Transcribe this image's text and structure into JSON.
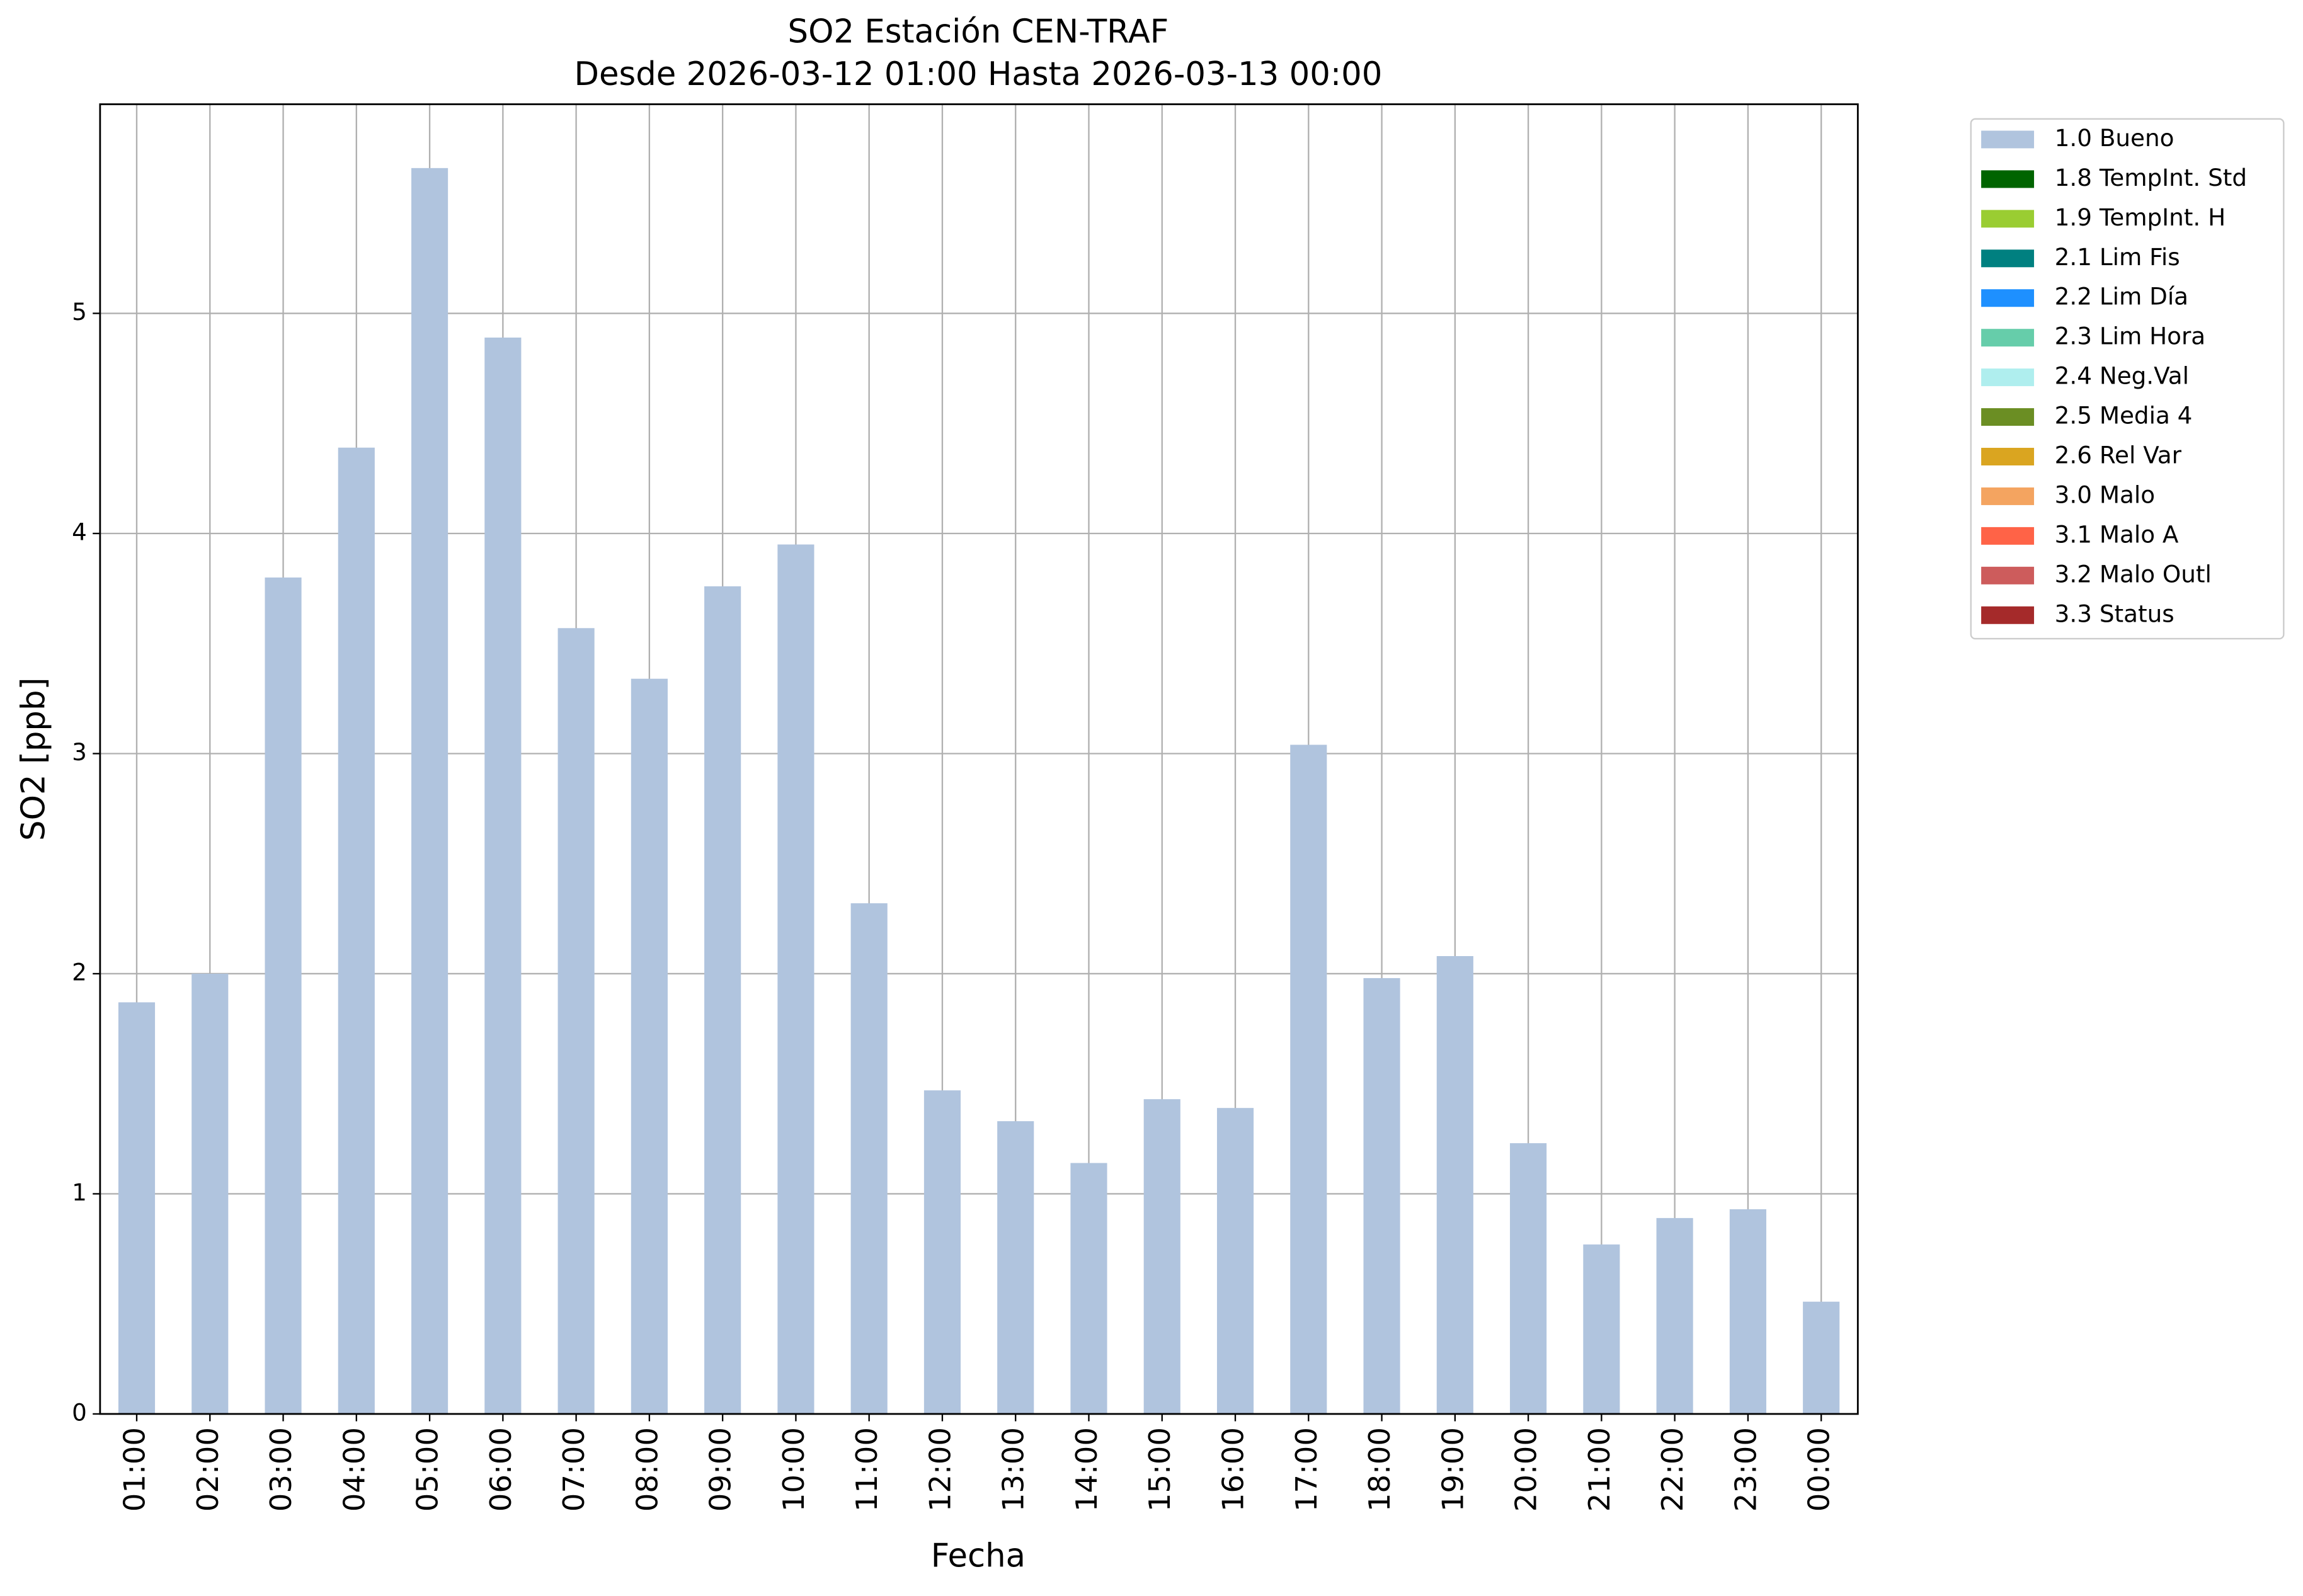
{
  "chart_data": {
    "type": "bar",
    "title": "SO2 Estación CEN-TRAF",
    "subtitle": "Desde 2026-03-12 01:00 Hasta 2026-03-13 00:00",
    "x_label": "Fecha",
    "y_label": "SO2 [ppb]",
    "categories": [
      "01:00",
      "02:00",
      "03:00",
      "04:00",
      "05:00",
      "06:00",
      "07:00",
      "08:00",
      "09:00",
      "10:00",
      "11:00",
      "12:00",
      "13:00",
      "14:00",
      "15:00",
      "16:00",
      "17:00",
      "18:00",
      "19:00",
      "20:00",
      "21:00",
      "22:00",
      "23:00",
      "00:00"
    ],
    "series": [
      {
        "name": "1.0 Bueno",
        "color": "#b0c4de",
        "values": [
          1.87,
          2.0,
          3.8,
          4.39,
          5.66,
          4.89,
          3.57,
          3.34,
          3.76,
          3.95,
          2.32,
          1.47,
          1.33,
          1.14,
          1.43,
          1.39,
          3.04,
          1.98,
          2.08,
          1.23,
          0.77,
          0.89,
          0.93,
          0.51
        ]
      }
    ],
    "legend_extra": [
      {
        "name": "1.8 TempInt. Std",
        "color": "#006400"
      },
      {
        "name": "1.9 TempInt. H",
        "color": "#9acd32"
      },
      {
        "name": "2.1 Lim Fis",
        "color": "#008080"
      },
      {
        "name": "2.2 Lim Día",
        "color": "#1e90ff"
      },
      {
        "name": "2.3 Lim Hora",
        "color": "#66cdaa"
      },
      {
        "name": "2.4 Neg.Val",
        "color": "#afeeee"
      },
      {
        "name": "2.5 Media 4",
        "color": "#6b8e23"
      },
      {
        "name": "2.6 Rel Var",
        "color": "#daa520"
      },
      {
        "name": "3.0 Malo",
        "color": "#f4a460"
      },
      {
        "name": "3.1 Malo A",
        "color": "#ff6347"
      },
      {
        "name": "3.2 Malo Outl",
        "color": "#cd5c5c"
      },
      {
        "name": "3.3 Status",
        "color": "#a52a2a"
      }
    ],
    "ylim": [
      0,
      5.95
    ],
    "yticks": [
      0,
      1,
      2,
      3,
      4,
      5
    ],
    "grid": true,
    "legend_position": "outside-upper-right"
  }
}
